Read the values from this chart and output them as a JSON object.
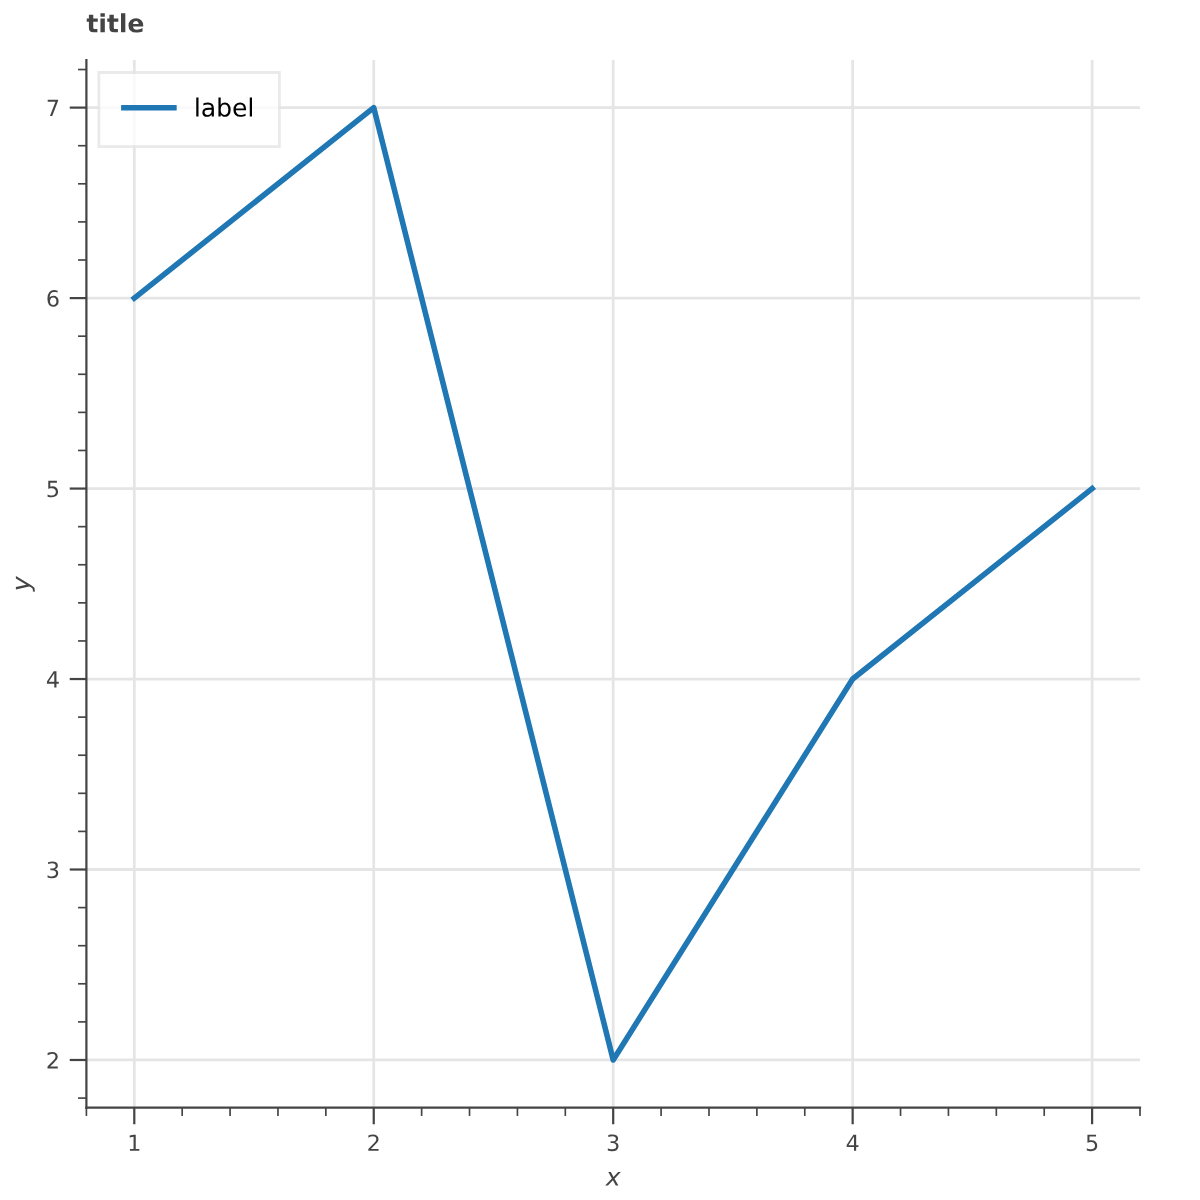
{
  "chart_data": {
    "type": "line",
    "title": "title",
    "xlabel": "x",
    "ylabel": "y",
    "x": [
      1,
      2,
      3,
      4,
      5
    ],
    "series": [
      {
        "name": "label",
        "color": "#1f77b4",
        "values": [
          6,
          7,
          2,
          4,
          5
        ]
      }
    ],
    "xlim": [
      0.8,
      5.2
    ],
    "ylim": [
      1.75,
      7.25
    ],
    "xticks": [
      1,
      2,
      3,
      4,
      5
    ],
    "yticks": [
      2,
      3,
      4,
      5,
      6,
      7
    ],
    "grid": true,
    "legend": "top left",
    "marker": "none",
    "line_style": "solid"
  }
}
